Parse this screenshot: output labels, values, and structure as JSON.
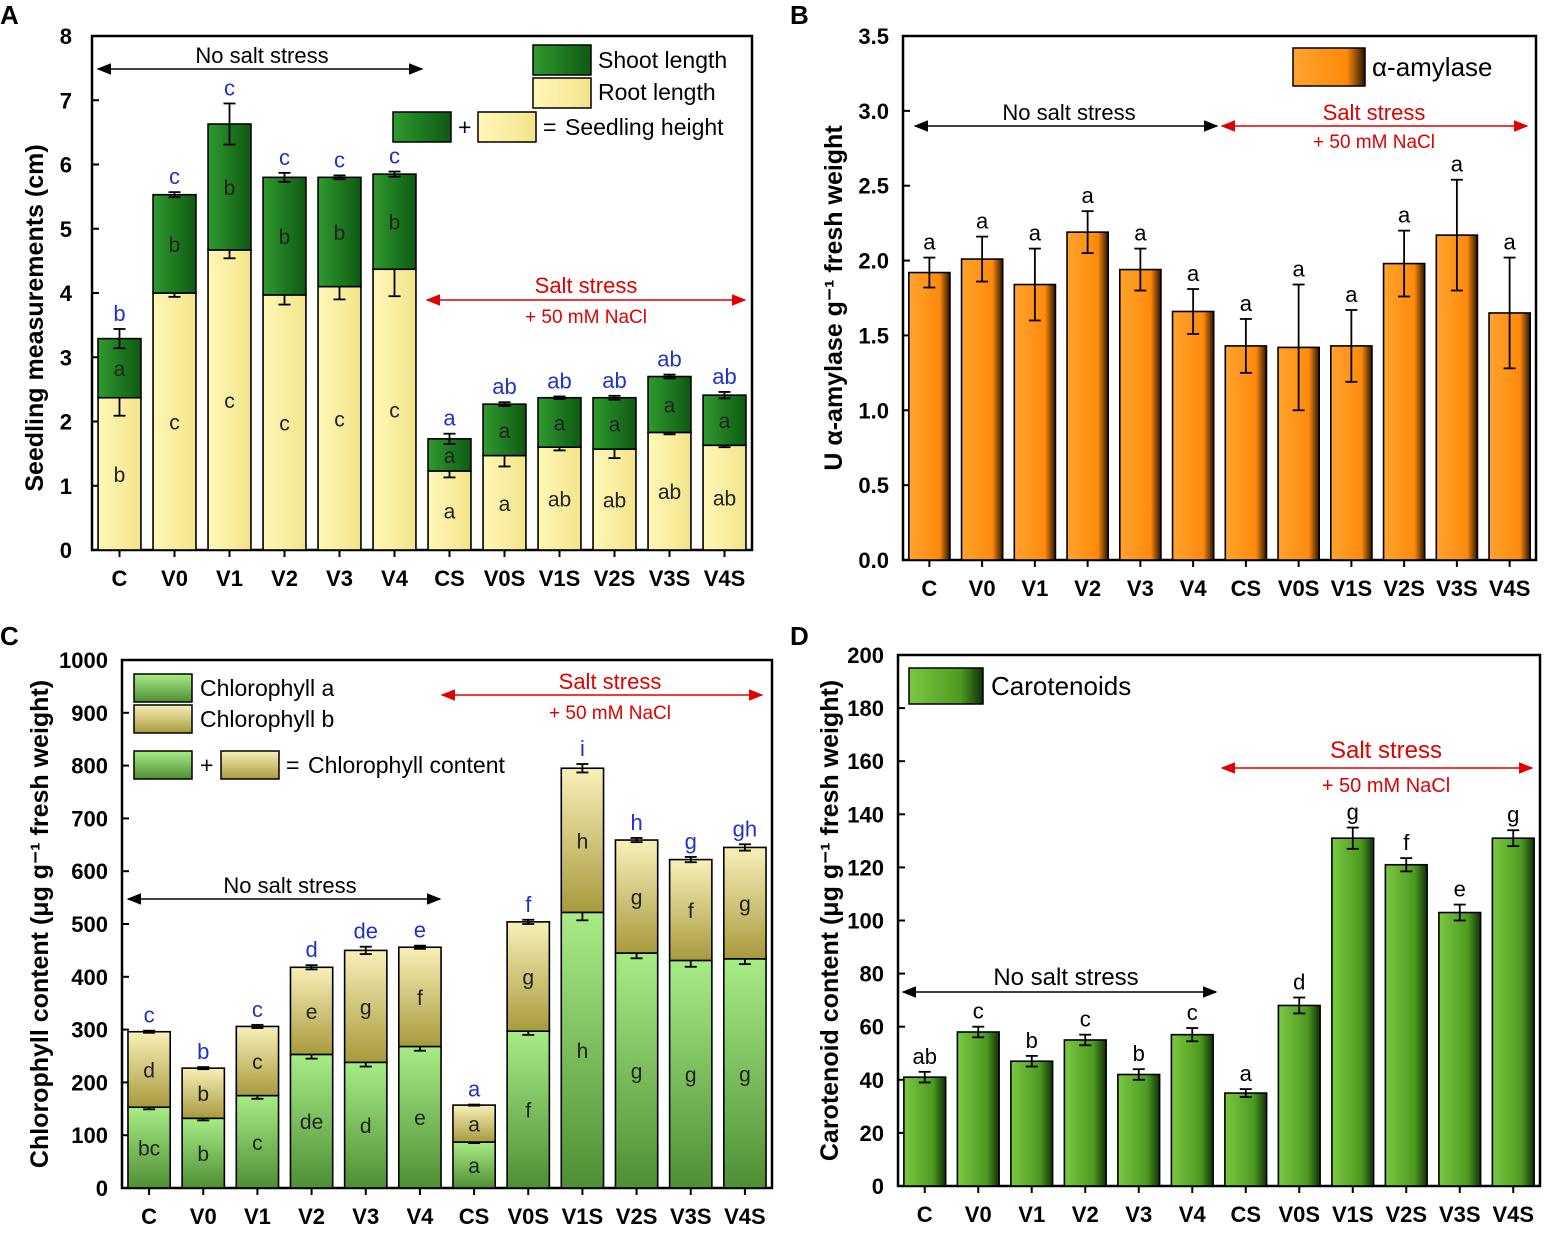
{
  "colors": {
    "shoot": "#1e7a1e",
    "root": "#fff4a8",
    "amylase": "#ff8c10",
    "chla": "#8fd870",
    "chlb": "#e6dc8a",
    "carot": "#5aaa28",
    "blue": "#1f33cc",
    "red": "#e00000"
  },
  "chart_data": [
    {
      "id": "A",
      "panel_label": "A",
      "type": "bar",
      "stacked": true,
      "categories": [
        "C",
        "V0",
        "V1",
        "V2",
        "V3",
        "V4",
        "CS",
        "V0S",
        "V1S",
        "V2S",
        "V3S",
        "V4S"
      ],
      "series": [
        {
          "name": "Root length",
          "values": [
            2.37,
            4.0,
            4.67,
            3.97,
            4.1,
            4.37,
            1.23,
            1.47,
            1.6,
            1.57,
            1.83,
            1.63
          ],
          "errors": [
            0.28,
            0.06,
            0.13,
            0.15,
            0.2,
            0.42,
            0.1,
            0.17,
            0.05,
            0.14,
            0.03,
            0.03
          ],
          "letters": [
            "b",
            "c",
            "c",
            "c",
            "c",
            "c",
            "a",
            "a",
            "ab",
            "ab",
            "ab",
            "ab"
          ]
        },
        {
          "name": "Shoot length",
          "values": [
            0.92,
            1.53,
            1.96,
            1.83,
            1.7,
            1.48,
            0.5,
            0.8,
            0.77,
            0.8,
            0.87,
            0.78
          ],
          "errors": [
            0.15,
            0.04,
            0.32,
            0.07,
            0.03,
            0.04,
            0.08,
            0.03,
            0.02,
            0.03,
            0.03,
            0.05
          ],
          "letters": [
            "a",
            "b",
            "b",
            "b",
            "b",
            "b",
            "a",
            "a",
            "a",
            "a",
            "a",
            "a"
          ]
        }
      ],
      "total_letters": [
        "b",
        "c",
        "c",
        "c",
        "c",
        "c",
        "a",
        "ab",
        "ab",
        "ab",
        "ab",
        "ab"
      ],
      "ylabel": "Seedling measurements (cm)",
      "ylim": [
        0,
        8
      ],
      "yticks": [
        "0",
        "1",
        "2",
        "3",
        "4",
        "5",
        "6",
        "7",
        "8"
      ],
      "legend": {
        "items": [
          "Shoot length",
          "Root length"
        ],
        "plus": "+",
        "equals": "=",
        "result": "Seedling height"
      },
      "annotations": {
        "no_salt": "No salt stress",
        "salt": "Salt stress",
        "nacl": "+ 50 mM NaCl"
      }
    },
    {
      "id": "B",
      "panel_label": "B",
      "type": "bar",
      "categories": [
        "C",
        "V0",
        "V1",
        "V2",
        "V3",
        "V4",
        "CS",
        "V0S",
        "V1S",
        "V2S",
        "V3S",
        "V4S"
      ],
      "series": [
        {
          "name": "α-amylase",
          "values": [
            1.92,
            2.01,
            1.84,
            2.19,
            1.94,
            1.66,
            1.43,
            1.42,
            1.43,
            1.98,
            2.17,
            1.65
          ],
          "errors": [
            0.1,
            0.15,
            0.24,
            0.14,
            0.14,
            0.15,
            0.18,
            0.42,
            0.24,
            0.22,
            0.37,
            0.37
          ],
          "letters": [
            "a",
            "a",
            "a",
            "a",
            "a",
            "a",
            "a",
            "a",
            "a",
            "a",
            "a",
            "a"
          ]
        }
      ],
      "ylabel": "U α-amylase g⁻¹ fresh weight",
      "ylim": [
        0,
        3.5
      ],
      "yticks": [
        "0.0",
        "0.5",
        "1.0",
        "1.5",
        "2.0",
        "2.5",
        "3.0",
        "3.5"
      ],
      "legend": {
        "items": [
          "α-amylase"
        ]
      },
      "annotations": {
        "no_salt": "No salt stress",
        "salt": "Salt stress",
        "nacl": "+ 50 mM NaCl"
      }
    },
    {
      "id": "C",
      "panel_label": "C",
      "type": "bar",
      "stacked": true,
      "categories": [
        "C",
        "V0",
        "V1",
        "V2",
        "V3",
        "V4",
        "CS",
        "V0S",
        "V1S",
        "V2S",
        "V3S",
        "V4S"
      ],
      "series": [
        {
          "name": "Chlorophyll a",
          "values": [
            153,
            132,
            175,
            253,
            238,
            268,
            87,
            297,
            522,
            445,
            431,
            434
          ],
          "errors": [
            4,
            4,
            6,
            8,
            8,
            8,
            2,
            7,
            15,
            10,
            12,
            10
          ],
          "letters": [
            "bc",
            "b",
            "c",
            "de",
            "d",
            "e",
            "a",
            "f",
            "h",
            "g",
            "g",
            "g"
          ]
        },
        {
          "name": "Chlorophyll b",
          "values": [
            143,
            95,
            131,
            165,
            212,
            188,
            70,
            207,
            273,
            214,
            191,
            211
          ],
          "errors": [
            2,
            2,
            3,
            4,
            7,
            3,
            1,
            4,
            8,
            4,
            5,
            6
          ],
          "letters": [
            "d",
            "b",
            "c",
            "e",
            "g",
            "f",
            "a",
            "g",
            "h",
            "g",
            "f",
            "g"
          ]
        }
      ],
      "total_letters": [
        "c",
        "b",
        "c",
        "d",
        "de",
        "e",
        "a",
        "f",
        "i",
        "h",
        "g",
        "gh"
      ],
      "ylabel": "Chlorophyll content (μg g⁻¹ fresh weight)",
      "ylim": [
        0,
        1000
      ],
      "yticks": [
        "0",
        "100",
        "200",
        "300",
        "400",
        "500",
        "600",
        "700",
        "800",
        "900",
        "1000"
      ],
      "legend": {
        "items": [
          "Chlorophyll a",
          "Chlorophyll b"
        ],
        "plus": "+",
        "equals": "=",
        "result": "Chlorophyll content"
      },
      "annotations": {
        "no_salt": "No salt stress",
        "salt": "Salt stress",
        "nacl": "+ 50 mM NaCl"
      }
    },
    {
      "id": "D",
      "panel_label": "D",
      "type": "bar",
      "categories": [
        "C",
        "V0",
        "V1",
        "V2",
        "V3",
        "V4",
        "CS",
        "V0S",
        "V1S",
        "V2S",
        "V3S",
        "V4S"
      ],
      "series": [
        {
          "name": "Carotenoids",
          "values": [
            41,
            58,
            47,
            55,
            42,
            57,
            35,
            68,
            131,
            121,
            103,
            131
          ],
          "errors": [
            2,
            2,
            2,
            2,
            2,
            2.5,
            1.5,
            3,
            4,
            2.5,
            3,
            3
          ],
          "letters": [
            "ab",
            "c",
            "b",
            "c",
            "b",
            "c",
            "a",
            "d",
            "g",
            "f",
            "e",
            "g"
          ]
        }
      ],
      "ylabel": "Carotenoid content (μg g⁻¹ fresh weight)",
      "ylim": [
        0,
        200
      ],
      "yticks": [
        "0",
        "20",
        "40",
        "60",
        "80",
        "100",
        "120",
        "140",
        "160",
        "180",
        "200"
      ],
      "legend": {
        "items": [
          "Carotenoids"
        ]
      },
      "annotations": {
        "no_salt": "No salt stress",
        "salt": "Salt stress",
        "nacl": "+ 50 mM NaCl"
      }
    }
  ]
}
